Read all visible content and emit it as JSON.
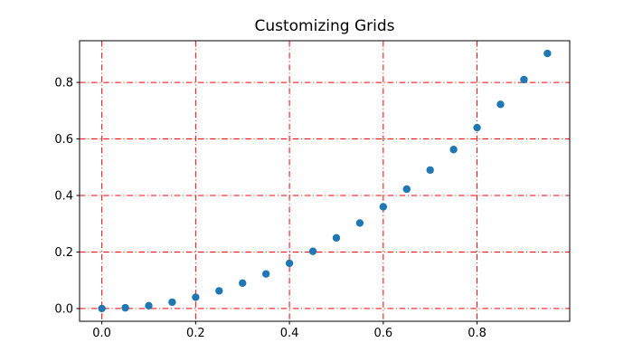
{
  "figure": {
    "background": "#ffffff"
  },
  "chart_data": {
    "type": "scatter",
    "title": "Customizing Grids",
    "xlabel": "",
    "ylabel": "",
    "x": [
      0.0,
      0.05,
      0.1,
      0.15,
      0.2,
      0.25,
      0.3,
      0.35,
      0.4,
      0.45,
      0.5,
      0.55,
      0.6,
      0.65,
      0.7,
      0.75,
      0.8,
      0.85,
      0.9,
      0.95
    ],
    "y": [
      0.0,
      0.0025,
      0.01,
      0.0225,
      0.04,
      0.0625,
      0.09,
      0.1225,
      0.16,
      0.2025,
      0.25,
      0.3025,
      0.36,
      0.4225,
      0.49,
      0.5625,
      0.64,
      0.7225,
      0.81,
      0.9025
    ],
    "xlim": [
      -0.0475,
      0.9975
    ],
    "ylim": [
      -0.0451,
      0.9476
    ],
    "xticks": {
      "values": [
        0.0,
        0.2,
        0.4,
        0.6,
        0.8
      ],
      "labels": [
        "0.0",
        "0.2",
        "0.4",
        "0.6",
        "0.8"
      ]
    },
    "yticks": {
      "values": [
        0.0,
        0.2,
        0.4,
        0.6,
        0.8
      ],
      "labels": [
        "0.0",
        "0.2",
        "0.4",
        "0.6",
        "0.8"
      ]
    },
    "grid": {
      "visible": true,
      "axis": "both",
      "color": "#ff0000",
      "linestyle": "dashdot"
    },
    "marker": {
      "shape": "circle",
      "color": "#1f77b4",
      "radius_px": 4.2
    },
    "axes": {
      "spine_color": "#000000",
      "tick_color": "#000000",
      "tick_label_color": "#000000"
    },
    "legend": null
  }
}
